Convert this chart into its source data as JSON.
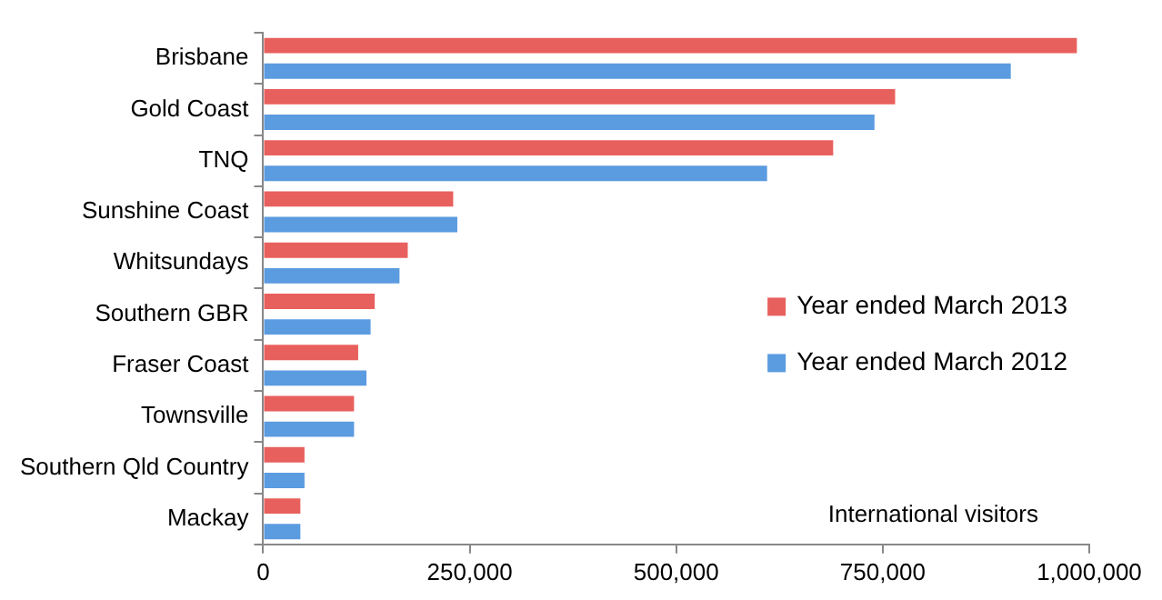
{
  "chart_data": {
    "type": "bar",
    "orientation": "horizontal",
    "categories": [
      "Brisbane",
      "Gold Coast",
      "TNQ",
      "Sunshine Coast",
      "Whitsundays",
      "Southern GBR",
      "Fraser Coast",
      "Townsville",
      "Southern Qld Country",
      "Mackay"
    ],
    "series": [
      {
        "name": "Year ended March 2013",
        "color": "#e8605d",
        "values": [
          985000,
          765000,
          690000,
          230000,
          175000,
          135000,
          115000,
          110000,
          50000,
          45000
        ]
      },
      {
        "name": "Year ended March 2012",
        "color": "#5b9be0",
        "values": [
          905000,
          740000,
          610000,
          235000,
          165000,
          130000,
          125000,
          110000,
          50000,
          45000
        ]
      }
    ],
    "xlim": [
      0,
      1000000
    ],
    "xticks": [
      {
        "value": 0,
        "label": "0"
      },
      {
        "value": 250000,
        "label": "250,000"
      },
      {
        "value": 500000,
        "label": "500,000"
      },
      {
        "value": 750000,
        "label": "750,000"
      },
      {
        "value": 1000000,
        "label": "1,000,000"
      }
    ],
    "grid": false,
    "legend": "right",
    "annotations": [
      "International visitors"
    ]
  }
}
